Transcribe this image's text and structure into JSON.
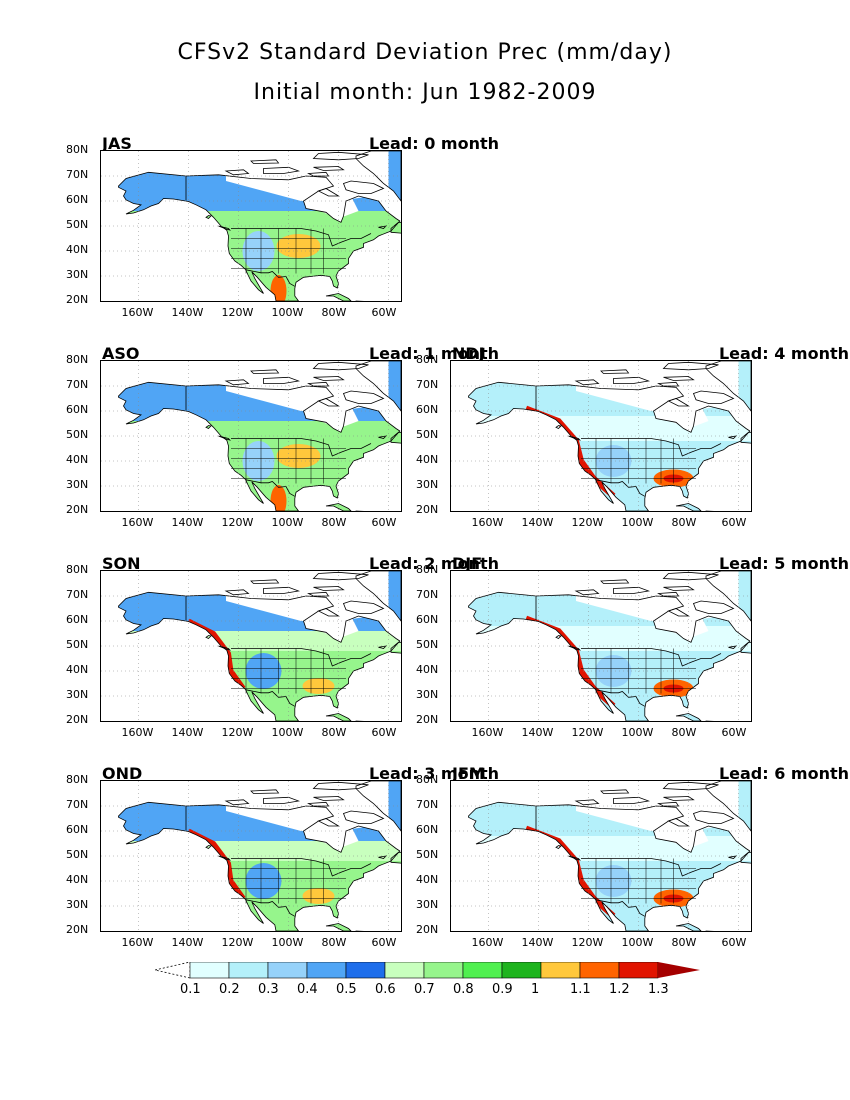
{
  "title": "CFSv2 Standard Deviation Prec (mm/day)",
  "subtitle": "Initial month: Jun 1982-2009",
  "lat_labels": [
    "80N",
    "70N",
    "60N",
    "50N",
    "40N",
    "30N",
    "20N"
  ],
  "lon_labels": [
    "160W",
    "140W",
    "120W",
    "100W",
    "80W",
    "60W"
  ],
  "panels": [
    {
      "season": "JAS",
      "lead": "Lead: 0 month",
      "dominant_level": "0.5"
    },
    {
      "season": "ASO",
      "lead": "Lead: 1 month",
      "dominant_level": "0.5"
    },
    {
      "season": "NDJ",
      "lead": "Lead: 4 month",
      "dominant_level": "0.3"
    },
    {
      "season": "SON",
      "lead": "Lead: 2 month",
      "dominant_level": "0.5"
    },
    {
      "season": "DJF",
      "lead": "Lead: 5 month",
      "dominant_level": "0.3"
    },
    {
      "season": "OND",
      "lead": "Lead: 3 month",
      "dominant_level": "0.5"
    },
    {
      "season": "JFM",
      "lead": "Lead: 6 month",
      "dominant_level": "0.3"
    }
  ],
  "colorbar": {
    "labels": [
      "0.1",
      "0.2",
      "0.3",
      "0.4",
      "0.5",
      "0.6",
      "0.7",
      "0.8",
      "0.9",
      "1",
      "1.1",
      "1.2",
      "1.3"
    ],
    "colors": [
      "#e1ffff",
      "#b4f0fa",
      "#96d2fa",
      "#50a5f5",
      "#1e6eeb",
      "#c8ffbe",
      "#96f58c",
      "#50f050",
      "#1eb41e",
      "#ffc83c",
      "#ff6400",
      "#e11400",
      "#a50000"
    ]
  }
}
